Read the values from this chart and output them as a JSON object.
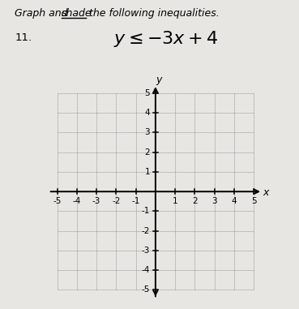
{
  "slope": -3,
  "intercept": 4,
  "xlim": [
    -5,
    5
  ],
  "ylim": [
    -5,
    5
  ],
  "grid_color": "#999999",
  "line_color": "#000000",
  "bg_color": "#f0eeeb",
  "outer_bg": "#e8e6e2",
  "title": "Graph and shade the following inequalities.",
  "title_underline_word": "shade",
  "problem_num": "11.",
  "inequality": "y≤⁻3x+4",
  "title_fontsize": 9.0,
  "label_fontsize": 7.5,
  "axis_label_fontsize": 9.0
}
